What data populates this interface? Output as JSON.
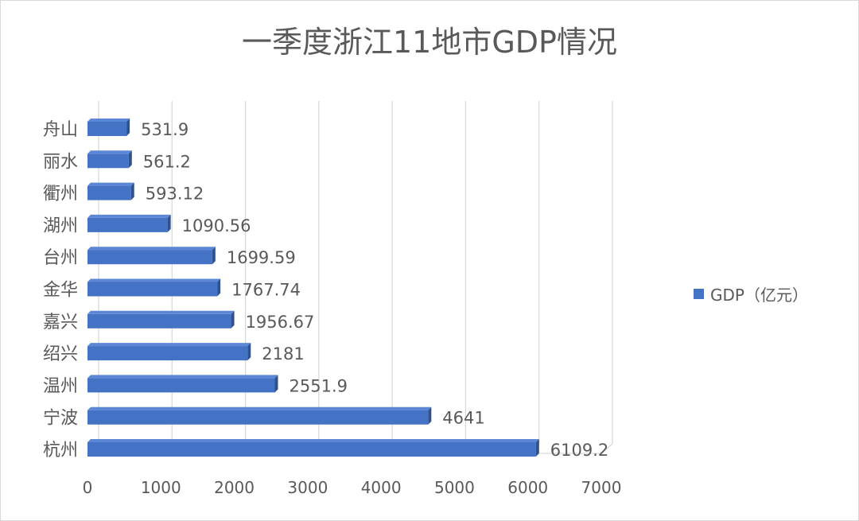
{
  "chart_data": {
    "type": "bar",
    "orientation": "horizontal",
    "title": "一季度浙江11地市GDP情况",
    "categories": [
      "杭州",
      "宁波",
      "温州",
      "绍兴",
      "嘉兴",
      "金华",
      "台州",
      "湖州",
      "衢州",
      "丽水",
      "舟山"
    ],
    "series": [
      {
        "name": "GDP（亿元）",
        "values": [
          6109.2,
          4641,
          2551.9,
          2181,
          1956.67,
          1767.74,
          1699.59,
          1090.56,
          593.12,
          561.2,
          531.9
        ],
        "labels": [
          "6109.2",
          "4641",
          "2551.9",
          "2181",
          "1956.67",
          "1767.74",
          "1699.59",
          "1090.56",
          "593.12",
          "561.2",
          "531.9"
        ]
      }
    ],
    "xlim": [
      0,
      7000
    ],
    "xticks": [
      "0",
      "1000",
      "2000",
      "3000",
      "4000",
      "5000",
      "6000",
      "7000"
    ],
    "grid": true,
    "legend_position": "right",
    "colors": {
      "bar": "#4472c4",
      "bar_dark": "#2f528f",
      "grid": "#d9d9d9",
      "text": "#595959"
    }
  }
}
